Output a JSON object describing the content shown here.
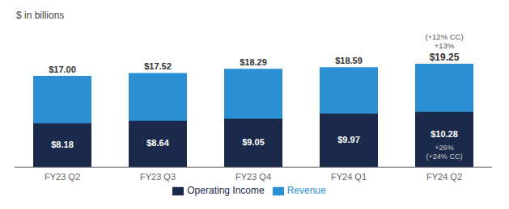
{
  "chart_data": {
    "type": "bar",
    "subtitle": "$ in billions",
    "categories": [
      "FY23 Q2",
      "FY23 Q3",
      "FY23 Q4",
      "FY24 Q1",
      "FY24 Q2"
    ],
    "series": [
      {
        "name": "Revenue",
        "color": "#2B8FD4",
        "values": [
          17.0,
          17.52,
          18.29,
          18.59,
          19.25
        ],
        "value_labels": [
          "$17.00",
          "$17.52",
          "$18.29",
          "$18.59",
          "$19.25"
        ]
      },
      {
        "name": "Operating Income",
        "color": "#1B2A4A",
        "values": [
          8.18,
          8.64,
          9.05,
          9.97,
          10.28
        ],
        "value_labels": [
          "$8.18",
          "$8.64",
          "$9.05",
          "$9.97",
          "$10.28"
        ]
      }
    ],
    "ylim": [
      0,
      26
    ],
    "stacked": false,
    "data_labels": true,
    "legend": "bottom",
    "tick_labels": "x",
    "grid": false,
    "annotations": [
      {
        "category": "FY24 Q2",
        "series": "Revenue",
        "position": "above",
        "text": [
          "+13%",
          "(+12% CC)"
        ]
      },
      {
        "category": "FY24 Q2",
        "series": "Operating Income",
        "position": "inside",
        "text": [
          "+26%",
          "(+24% CC)"
        ]
      }
    ]
  }
}
